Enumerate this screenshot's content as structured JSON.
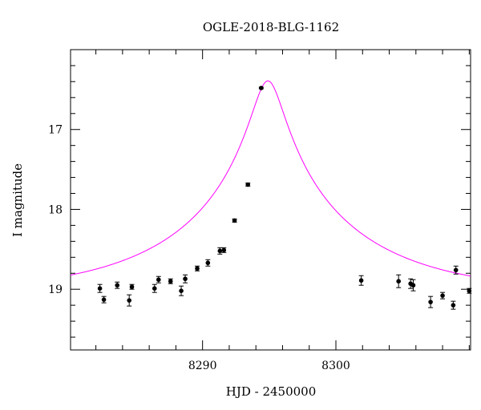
{
  "chart_data": {
    "type": "scatter",
    "title": "OGLE-2018-BLG-1162",
    "xlabel": "HJD - 2450000",
    "ylabel": "I magnitude",
    "xlim": [
      8280.1,
      8310.1
    ],
    "ylim": [
      19.76,
      16.0
    ],
    "y_inverted": true,
    "grid": false,
    "x_major_ticks": [
      8290,
      8300
    ],
    "x_minor_step": 2,
    "y_major_ticks": [
      17,
      18,
      19
    ],
    "y_minor_step": 0.2,
    "series": [
      {
        "kind": "points_with_errorbars",
        "color": "#000000",
        "points": [
          {
            "x": 8282.3,
            "y": 18.99,
            "err": 0.05
          },
          {
            "x": 8282.6,
            "y": 19.13,
            "err": 0.04
          },
          {
            "x": 8283.6,
            "y": 18.95,
            "err": 0.04
          },
          {
            "x": 8284.5,
            "y": 19.14,
            "err": 0.07
          },
          {
            "x": 8284.7,
            "y": 18.97,
            "err": 0.03
          },
          {
            "x": 8286.4,
            "y": 18.99,
            "err": 0.05
          },
          {
            "x": 8286.7,
            "y": 18.88,
            "err": 0.04
          },
          {
            "x": 8287.6,
            "y": 18.9,
            "err": 0.03
          },
          {
            "x": 8288.4,
            "y": 19.02,
            "err": 0.06
          },
          {
            "x": 8288.7,
            "y": 18.87,
            "err": 0.05
          },
          {
            "x": 8289.6,
            "y": 18.74,
            "err": 0.03
          },
          {
            "x": 8290.4,
            "y": 18.67,
            "err": 0.04
          },
          {
            "x": 8291.3,
            "y": 18.52,
            "err": 0.04
          },
          {
            "x": 8291.6,
            "y": 18.51,
            "err": 0.03
          },
          {
            "x": 8292.4,
            "y": 18.14,
            "err": 0.02
          },
          {
            "x": 8293.4,
            "y": 17.69,
            "err": 0.02
          },
          {
            "x": 8294.4,
            "y": 16.48,
            "err": 0.01
          },
          {
            "x": 8301.9,
            "y": 18.89,
            "err": 0.06
          },
          {
            "x": 8304.7,
            "y": 18.9,
            "err": 0.08
          },
          {
            "x": 8305.6,
            "y": 18.93,
            "err": 0.06
          },
          {
            "x": 8305.8,
            "y": 18.95,
            "err": 0.07
          },
          {
            "x": 8307.1,
            "y": 19.16,
            "err": 0.07
          },
          {
            "x": 8308.0,
            "y": 19.08,
            "err": 0.04
          },
          {
            "x": 8308.8,
            "y": 19.2,
            "err": 0.05
          },
          {
            "x": 8309.0,
            "y": 18.76,
            "err": 0.05
          },
          {
            "x": 8310.0,
            "y": 19.02,
            "err": 0.03
          }
        ]
      },
      {
        "kind": "model_curve",
        "color": "#ff00ff",
        "model": {
          "t0": 8294.9,
          "tE": 13.0,
          "u0": 0.085,
          "baseline": 19.07,
          "blend_fraction": 1.0
        },
        "x_range": [
          8280.1,
          8310.1
        ]
      }
    ]
  }
}
